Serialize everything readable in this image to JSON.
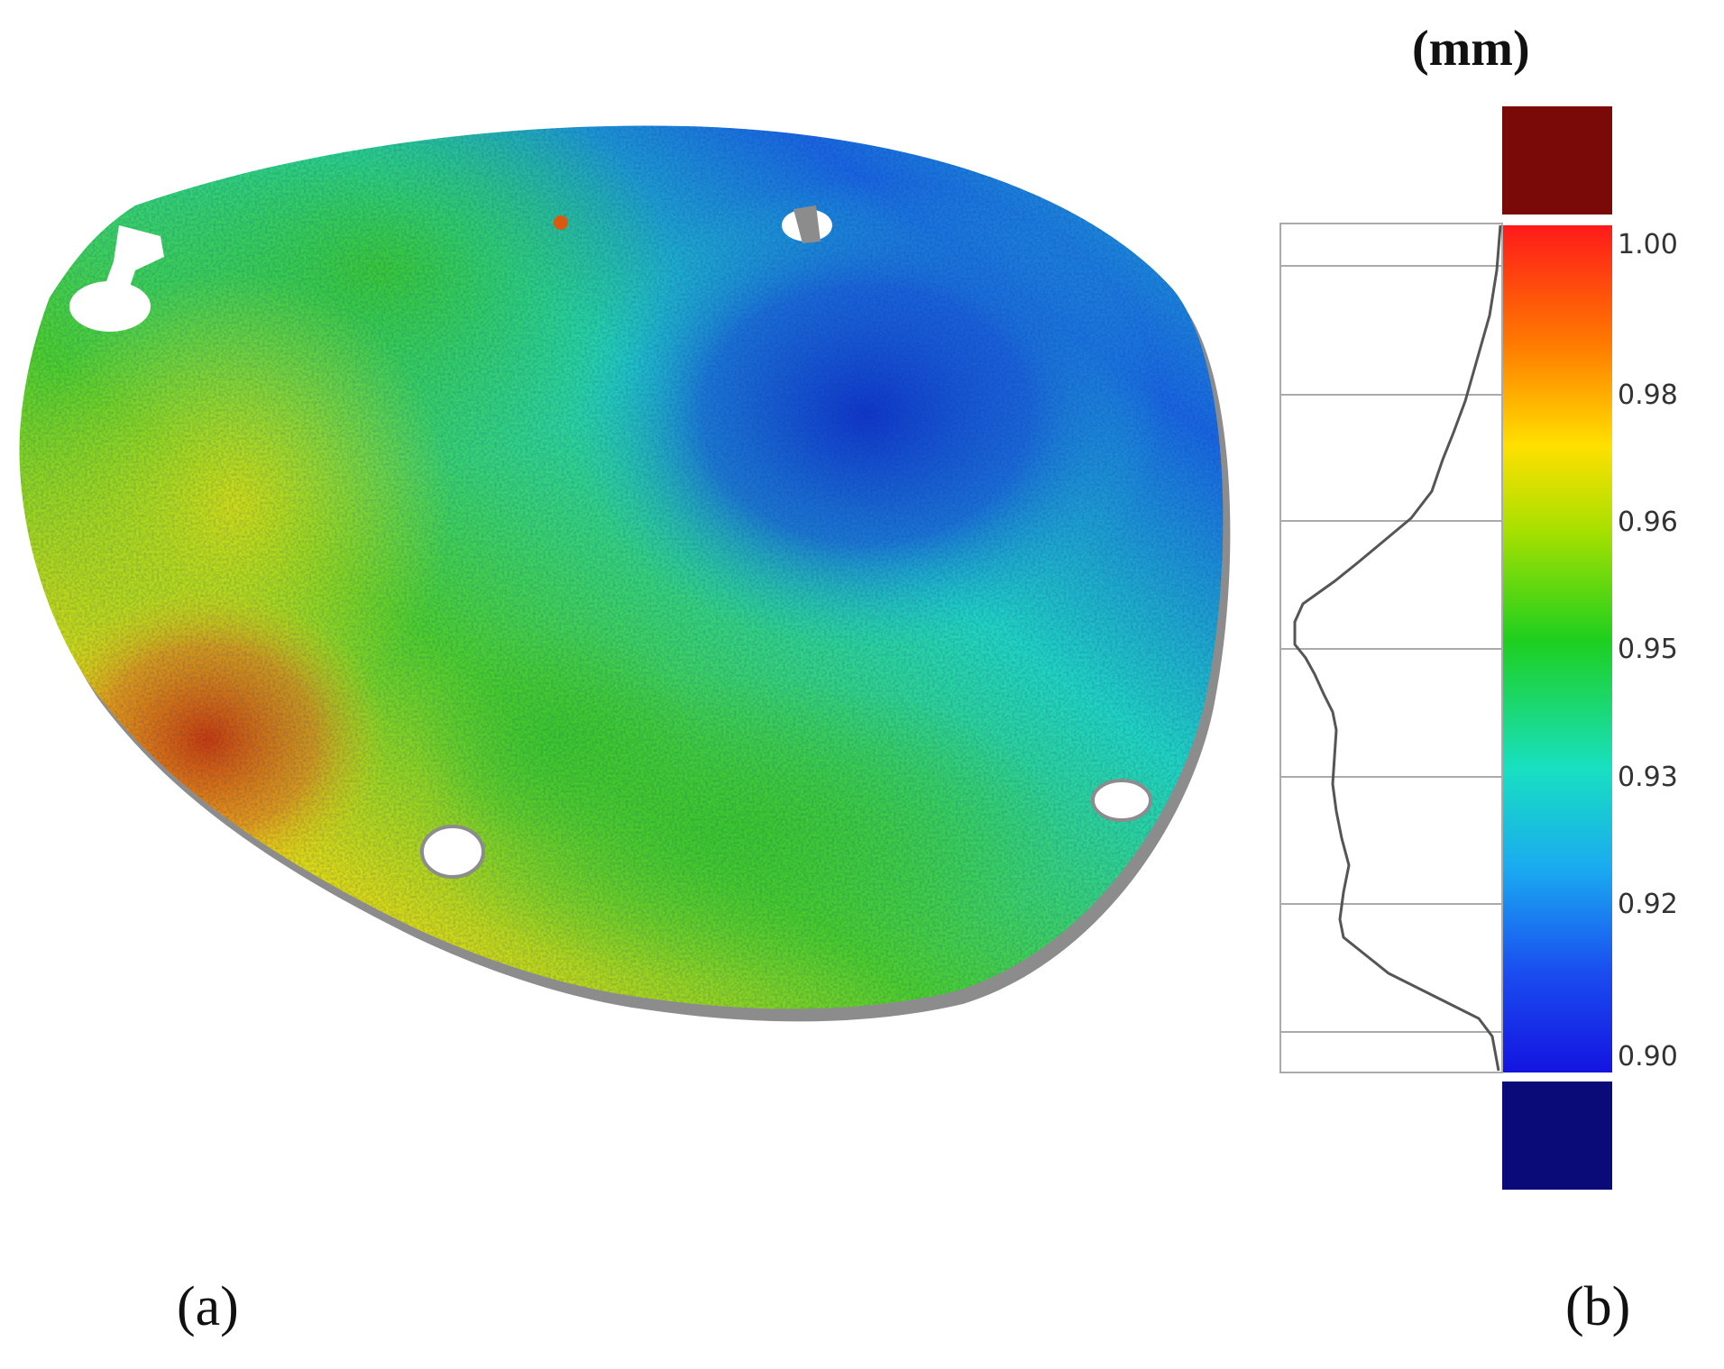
{
  "panels": {
    "a": "(a)",
    "b": "(b)"
  },
  "legend": {
    "unit": "(mm)",
    "ticks": [
      {
        "value": "1.00",
        "level": 1.0
      },
      {
        "value": "0.98",
        "level": 0.98
      },
      {
        "value": "0.96",
        "level": 0.96
      },
      {
        "value": "0.95",
        "level": 0.95
      },
      {
        "value": "0.93",
        "level": 0.93
      },
      {
        "value": "0.92",
        "level": 0.92
      },
      {
        "value": "0.90",
        "level": 0.9
      }
    ],
    "over_range_color": "#7a0a08",
    "under_range_color": "#0a0a78",
    "gradient_colors": [
      "#ff1a1a",
      "#ff7a00",
      "#ffe000",
      "#a8e000",
      "#1ecf1e",
      "#18e0c0",
      "#1aaaf0",
      "#1a4ef0",
      "#1414e0"
    ]
  },
  "plate": {
    "description_colors": {
      "high": "#e03010",
      "mid_high": "#f0e000",
      "mid": "#2ec82e",
      "mid_low": "#22d8d0",
      "low": "#1a48d8"
    }
  }
}
